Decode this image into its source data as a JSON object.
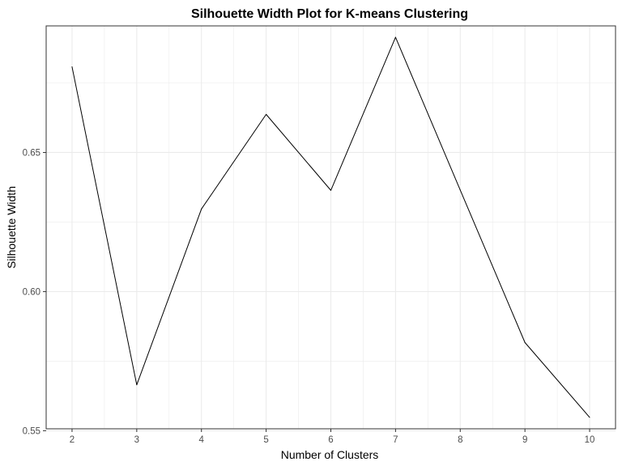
{
  "chart_data": {
    "type": "line",
    "title": "Silhouette Width Plot for K-means Clustering",
    "xlabel": "Number of Clusters",
    "ylabel": "Silhouette Width",
    "x": [
      2,
      3,
      4,
      5,
      6,
      7,
      8,
      9,
      10
    ],
    "y": [
      0.6808,
      0.5665,
      0.6297,
      0.6637,
      0.6364,
      0.6914,
      0.6365,
      0.5817,
      0.5548
    ],
    "x_ticks": [
      "2",
      "3",
      "4",
      "5",
      "6",
      "7",
      "8",
      "9",
      "10"
    ],
    "y_ticks": [
      "0.55",
      "0.60",
      "0.65"
    ],
    "xlim": [
      1.6,
      10.4
    ],
    "ylim": [
      0.5507,
      0.6955
    ],
    "grid": true,
    "legend": "none",
    "colors": {
      "line": "#000000",
      "grid": "#ebebeb",
      "panel_border": "#333333"
    }
  }
}
